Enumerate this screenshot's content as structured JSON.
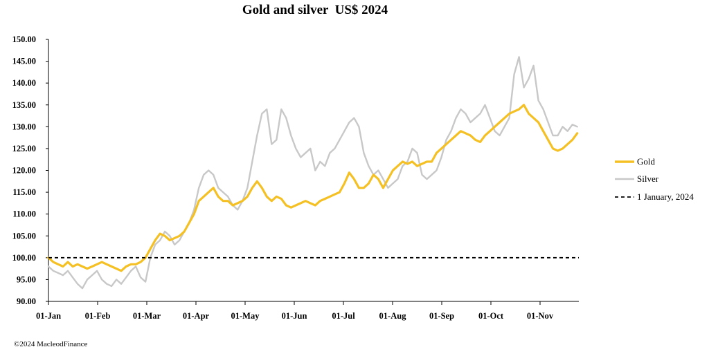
{
  "chart_data": {
    "type": "line",
    "title": "Gold and silver  US$ 2024",
    "y_ticks": [
      "150.00",
      "145.00",
      "140.00",
      "135.00",
      "130.00",
      "125.00",
      "120.00",
      "115.00",
      "110.00",
      "105.00",
      "100.00",
      "95.00",
      "90.00"
    ],
    "ylim": [
      90,
      150
    ],
    "x_ticks": [
      "01-Jan",
      "01-Feb",
      "01-Mar",
      "01-Apr",
      "01-May",
      "01-Jun",
      "01-Jul",
      "01-Aug",
      "01-Sep",
      "01-Oct",
      "01-Nov"
    ],
    "xlim": [
      0,
      328
    ],
    "grid": false,
    "legend_position": "right",
    "series": [
      {
        "name": "Gold",
        "color": "#F4C024",
        "x": [
          0,
          3,
          6,
          9,
          12,
          15,
          18,
          21,
          24,
          27,
          30,
          33,
          36,
          39,
          42,
          45,
          48,
          51,
          54,
          57,
          60,
          63,
          66,
          69,
          72,
          75,
          78,
          81,
          84,
          87,
          90,
          93,
          96,
          99,
          102,
          105,
          108,
          111,
          114,
          117,
          120,
          123,
          126,
          129,
          132,
          135,
          138,
          141,
          144,
          147,
          150,
          153,
          156,
          159,
          162,
          165,
          168,
          171,
          174,
          177,
          180,
          183,
          186,
          189,
          192,
          195,
          198,
          201,
          204,
          207,
          210,
          213,
          216,
          219,
          222,
          225,
          228,
          231,
          234,
          237,
          240,
          243,
          246,
          249,
          252,
          255,
          258,
          261,
          264,
          267,
          270,
          273,
          276,
          279,
          282,
          285,
          288,
          291,
          294,
          297,
          300,
          303,
          306,
          309,
          312,
          315,
          318,
          321,
          324,
          327
        ],
        "values": [
          100,
          99,
          98.5,
          98,
          99,
          98,
          98.5,
          98,
          97.5,
          98,
          98.5,
          99,
          98.5,
          98,
          97.5,
          97,
          98,
          98.5,
          98.5,
          99,
          100,
          102,
          104,
          105.5,
          105,
          104,
          104.5,
          105,
          106,
          108,
          110,
          113,
          114,
          115,
          116,
          114,
          113,
          113,
          112,
          112.5,
          113,
          114,
          116,
          117.5,
          116,
          114,
          113,
          114,
          113.5,
          112,
          111.5,
          112,
          112.5,
          113,
          112.5,
          112,
          113,
          113.5,
          114,
          114.5,
          115,
          117,
          119.5,
          118,
          116,
          116,
          117,
          119,
          118,
          116,
          118,
          120,
          121,
          122,
          121.5,
          122,
          121,
          121.5,
          122,
          122,
          124,
          125,
          126,
          127,
          128,
          129,
          128.5,
          128,
          127,
          126.5,
          128,
          129,
          130,
          131,
          132,
          133,
          133.5,
          134,
          135,
          133,
          132,
          131,
          129,
          127,
          125,
          124.5,
          125,
          126,
          127,
          128.5
        ]
      },
      {
        "name": "Silver",
        "color": "#C8C8C8",
        "x": [
          0,
          3,
          6,
          9,
          12,
          15,
          18,
          21,
          24,
          27,
          30,
          33,
          36,
          39,
          42,
          45,
          48,
          51,
          54,
          57,
          60,
          63,
          66,
          69,
          72,
          75,
          78,
          81,
          84,
          87,
          90,
          93,
          96,
          99,
          102,
          105,
          108,
          111,
          114,
          117,
          120,
          123,
          126,
          129,
          132,
          135,
          138,
          141,
          144,
          147,
          150,
          153,
          156,
          159,
          162,
          165,
          168,
          171,
          174,
          177,
          180,
          183,
          186,
          189,
          192,
          195,
          198,
          201,
          204,
          207,
          210,
          213,
          216,
          219,
          222,
          225,
          228,
          231,
          234,
          237,
          240,
          243,
          246,
          249,
          252,
          255,
          258,
          261,
          264,
          267,
          270,
          273,
          276,
          279,
          282,
          285,
          288,
          291,
          294,
          297,
          300,
          303,
          306,
          309,
          312,
          315,
          318,
          321,
          324,
          327
        ],
        "values": [
          98,
          97,
          96.5,
          96,
          97,
          95.5,
          94,
          93,
          95,
          96,
          97,
          95,
          94,
          93.5,
          95,
          94,
          95.5,
          97,
          98,
          95.5,
          94.5,
          100,
          103,
          104,
          106,
          105,
          103,
          104,
          106,
          108,
          111,
          116,
          119,
          120,
          119,
          116,
          115,
          114,
          112,
          111,
          113,
          116,
          122,
          128,
          133,
          134,
          126,
          127,
          134,
          132,
          128,
          125,
          123,
          124,
          125,
          120,
          122,
          121,
          124,
          125,
          127,
          129,
          131,
          132,
          130,
          124,
          121,
          119,
          120,
          118,
          116,
          117,
          118,
          121,
          122,
          125,
          124,
          119,
          118,
          119,
          120,
          123,
          127,
          129,
          132,
          134,
          133,
          131,
          132,
          133,
          135,
          132,
          129,
          128,
          130,
          132,
          142,
          146,
          139,
          141,
          144,
          136,
          134,
          131,
          128,
          128,
          130,
          129,
          130.5,
          130
        ]
      },
      {
        "name": "1 January, 2024",
        "color": "#000000",
        "x": [
          0,
          328
        ],
        "values": [
          100,
          100
        ]
      }
    ]
  },
  "footer": "©2024 MacleodFinance"
}
